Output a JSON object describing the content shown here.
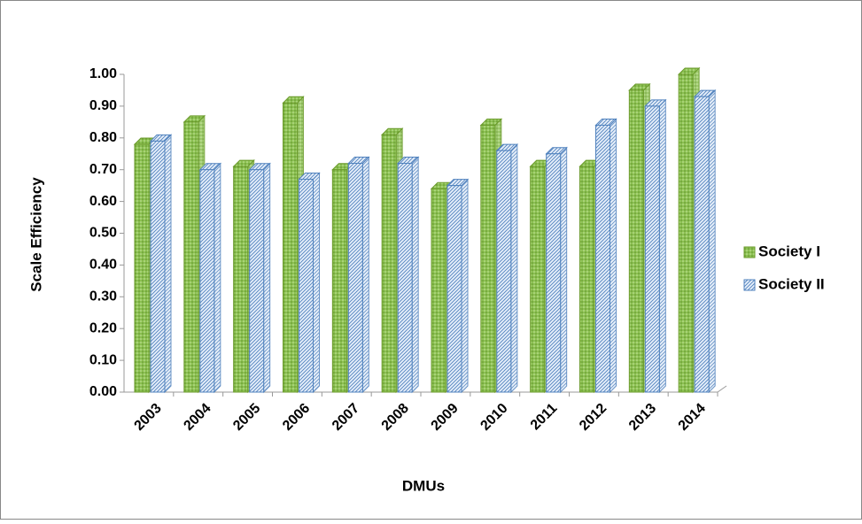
{
  "chart_data": {
    "type": "bar3d",
    "x_label": "DMUs",
    "y_label": "Scale Efficiency",
    "categories": [
      "2003",
      "2004",
      "2005",
      "2006",
      "2007",
      "2008",
      "2009",
      "2010",
      "2011",
      "2012",
      "2013",
      "2014"
    ],
    "series": [
      {
        "name": "Society I",
        "color": "#8cc152",
        "pattern": "dots",
        "values": [
          0.78,
          0.85,
          0.71,
          0.91,
          0.7,
          0.81,
          0.64,
          0.84,
          0.71,
          0.71,
          0.95,
          1.0
        ]
      },
      {
        "name": "Society II",
        "color": "#4f81bd",
        "pattern": "hatch",
        "values": [
          0.79,
          0.7,
          0.7,
          0.67,
          0.72,
          0.72,
          0.65,
          0.76,
          0.75,
          0.84,
          0.9,
          0.93
        ]
      }
    ],
    "ylim": [
      0,
      1
    ],
    "yticks": [
      {
        "value": 0,
        "label": "0.00"
      },
      {
        "value": 0.1,
        "label": "0.10"
      },
      {
        "value": 0.2,
        "label": "0.20"
      },
      {
        "value": 0.3,
        "label": "0.30"
      },
      {
        "value": 0.4,
        "label": "0.40"
      },
      {
        "value": 0.5,
        "label": "0.50"
      },
      {
        "value": 0.6,
        "label": "0.60"
      },
      {
        "value": 0.7,
        "label": "0.70"
      },
      {
        "value": 0.8,
        "label": "0.80"
      },
      {
        "value": 0.9,
        "label": "0.90"
      },
      {
        "value": 1,
        "label": "1.00"
      }
    ],
    "legend": "right"
  }
}
